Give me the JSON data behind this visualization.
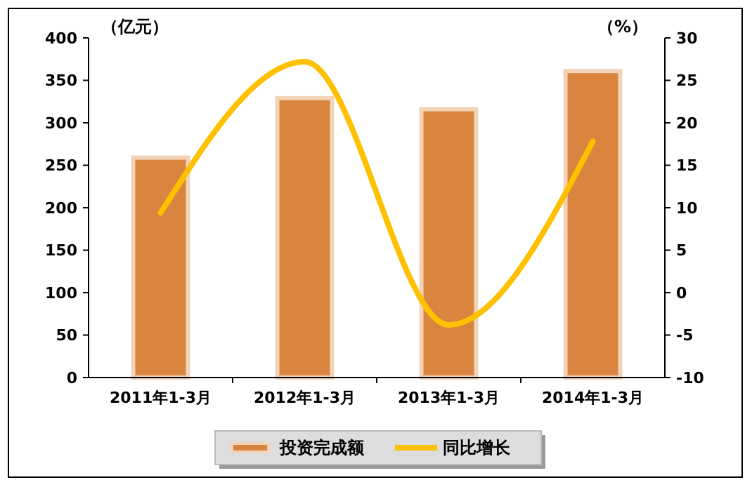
{
  "chart_data": {
    "type": "bar",
    "categories": [
      "2011年1-3月",
      "2012年1-3月",
      "2013年1-3月",
      "2014年1-3月"
    ],
    "ylabel": "（亿元）",
    "y2label": "（%）",
    "series": [
      {
        "name": "投资完成额",
        "color": "#d9843f",
        "values": [
          259,
          329,
          316,
          361
        ]
      },
      {
        "name": "同比增长",
        "type": "line",
        "axis": "y2",
        "color": "#ffc000",
        "values": [
          9.4,
          27.2,
          -3.8,
          17.8
        ]
      }
    ],
    "ylim": [
      0,
      400
    ],
    "yticks": [
      0,
      50,
      100,
      150,
      200,
      250,
      300,
      350,
      400
    ],
    "y2lim": [
      -10,
      30
    ],
    "y2ticks": [
      -10,
      -5,
      0,
      5,
      10,
      15,
      20,
      25,
      30
    ],
    "legend": "bottom",
    "grid": false,
    "marker": "none"
  }
}
